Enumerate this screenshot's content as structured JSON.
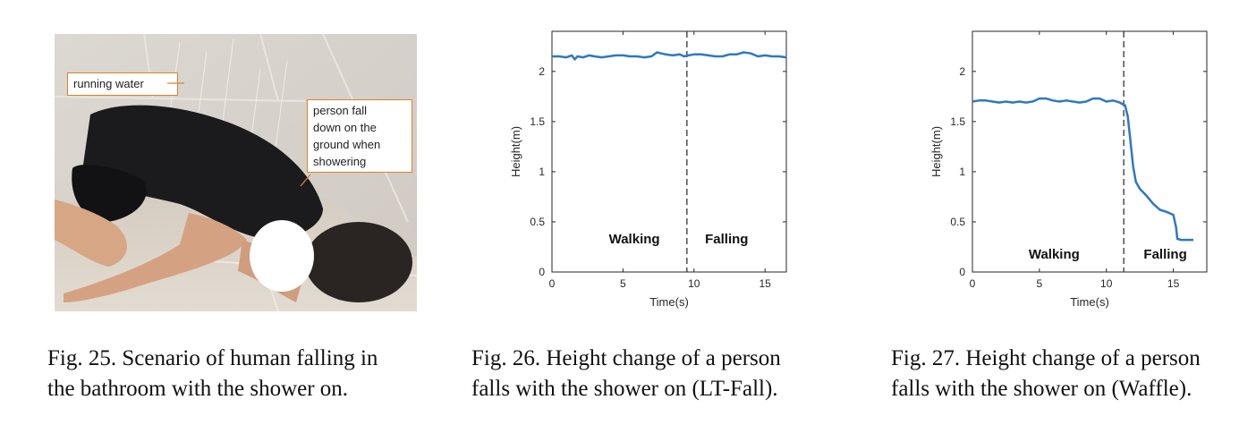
{
  "figures": [
    {
      "caption": "Fig. 25.  Scenario of human falling in the bathroom with the shower on.",
      "caption_line1": "Fig. 25.  Scenario of human falling in",
      "caption_line2": "the bathroom with the shower on.",
      "photo": {
        "callout_water": "running water",
        "callout_person_lines": [
          "person fall",
          "down on the",
          "ground when",
          "showering"
        ]
      }
    },
    {
      "caption_line1": "Fig. 26.  Height change of a person",
      "caption_line2": "falls with the shower on (LT-Fall)."
    },
    {
      "caption_line1": "Fig. 27.  Height change of a person",
      "caption_line2": "falls with the shower on (Waffle)."
    }
  ],
  "chart_data": [
    {
      "type": "line",
      "id": "lt-fall",
      "xlabel": "Time(s)",
      "ylabel": "Height(m)",
      "xlim": [
        0,
        16.5
      ],
      "ylim": [
        0,
        2.4
      ],
      "xticks": [
        0,
        5,
        10,
        15
      ],
      "yticks": [
        0,
        0.5,
        1,
        1.5,
        2
      ],
      "ytick_labels": [
        "0",
        "0.5",
        "1",
        "1.5",
        "2"
      ],
      "xtick_labels": [
        "0",
        "5",
        "10",
        "15"
      ],
      "grid": false,
      "divider_x": 9.5,
      "region_labels": [
        {
          "text": "Walking",
          "x": 5.8,
          "y": 0.33
        },
        {
          "text": "Falling",
          "x": 12.3,
          "y": 0.33
        }
      ],
      "series": [
        {
          "name": "Height",
          "x": [
            0,
            0.5,
            1.0,
            1.4,
            1.6,
            1.8,
            2.2,
            2.6,
            3.0,
            3.5,
            4.0,
            4.5,
            5.0,
            5.5,
            6.0,
            6.5,
            7.0,
            7.4,
            7.7,
            8.0,
            8.5,
            9.0,
            9.3,
            9.6,
            10.0,
            10.5,
            11.0,
            11.5,
            12.0,
            12.5,
            13.0,
            13.5,
            14.0,
            14.5,
            15.0,
            15.5,
            16.0,
            16.5
          ],
          "values": [
            2.15,
            2.15,
            2.14,
            2.16,
            2.12,
            2.15,
            2.14,
            2.16,
            2.15,
            2.14,
            2.15,
            2.16,
            2.16,
            2.15,
            2.15,
            2.14,
            2.15,
            2.19,
            2.18,
            2.17,
            2.16,
            2.17,
            2.15,
            2.16,
            2.17,
            2.17,
            2.16,
            2.15,
            2.15,
            2.17,
            2.17,
            2.19,
            2.18,
            2.15,
            2.16,
            2.15,
            2.15,
            2.14
          ]
        }
      ]
    },
    {
      "type": "line",
      "id": "waffle",
      "xlabel": "Time(s)",
      "ylabel": "Height(m)",
      "xlim": [
        0,
        17.5
      ],
      "ylim": [
        0,
        2.4
      ],
      "xticks": [
        0,
        5,
        10,
        15
      ],
      "yticks": [
        0,
        0.5,
        1,
        1.5,
        2
      ],
      "ytick_labels": [
        "0",
        "0.5",
        "1",
        "1.5",
        "2"
      ],
      "xtick_labels": [
        "0",
        "5",
        "10",
        "15"
      ],
      "grid": false,
      "divider_x": 11.3,
      "region_labels": [
        {
          "text": "Walking",
          "x": 6.1,
          "y": 0.18
        },
        {
          "text": "Falling",
          "x": 14.4,
          "y": 0.18
        }
      ],
      "series": [
        {
          "name": "Height",
          "x": [
            0,
            0.5,
            1.0,
            1.5,
            2.0,
            2.5,
            3.0,
            3.5,
            4.0,
            4.5,
            5.0,
            5.5,
            6.0,
            6.5,
            7.0,
            7.5,
            8.0,
            8.5,
            9.0,
            9.5,
            10.0,
            10.5,
            11.0,
            11.4,
            11.6,
            11.8,
            12.0,
            12.2,
            12.5,
            13.0,
            13.5,
            14.0,
            14.5,
            15.0,
            15.2,
            15.3,
            15.6,
            16.0,
            16.5
          ],
          "values": [
            1.7,
            1.71,
            1.71,
            1.7,
            1.69,
            1.7,
            1.69,
            1.7,
            1.69,
            1.7,
            1.73,
            1.73,
            1.71,
            1.7,
            1.71,
            1.7,
            1.69,
            1.7,
            1.73,
            1.73,
            1.7,
            1.71,
            1.69,
            1.66,
            1.55,
            1.3,
            1.05,
            0.9,
            0.83,
            0.76,
            0.68,
            0.62,
            0.6,
            0.57,
            0.45,
            0.33,
            0.32,
            0.32,
            0.32
          ]
        }
      ]
    }
  ]
}
